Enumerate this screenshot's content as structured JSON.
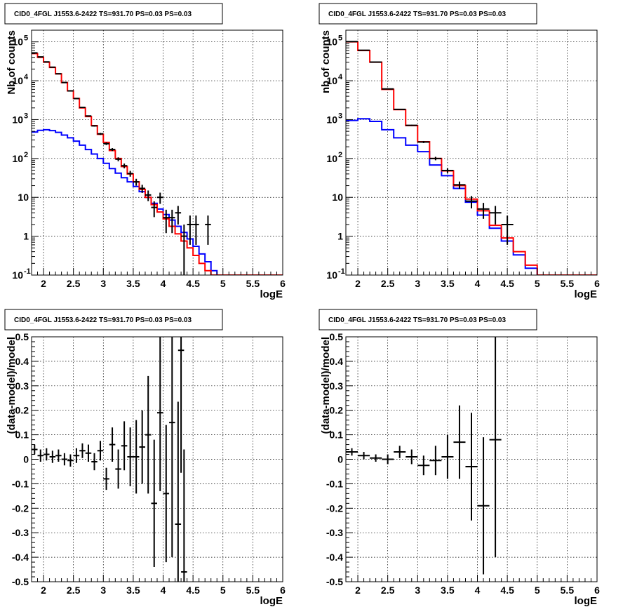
{
  "panel_title": "CID0_4FGL J1553.6-2422 TS=931.70 PS=0.03 PS=0.03",
  "colors": {
    "model_total": "#ff0000",
    "model_source": "#0000ff",
    "data": "#000000"
  },
  "chart_data": [
    {
      "type": "line",
      "panel": "top-left",
      "title": "CID0_4FGL J1553.6-2422 TS=931.70 PS=0.03 PS=0.03",
      "xlabel": "logE",
      "ylabel": "Nb of counts",
      "xlim": [
        1.8,
        6
      ],
      "ylim": [
        0.1,
        200000
      ],
      "ylog": true,
      "grid": true,
      "xticks": [
        "2",
        "2.5",
        "3",
        "3.5",
        "4",
        "4.5",
        "5",
        "5.5",
        "6"
      ],
      "yticks": [
        {
          "v": 0.1,
          "label": "10",
          "exp": "-1"
        },
        {
          "v": 1,
          "label": "1",
          "exp": ""
        },
        {
          "v": 10,
          "label": "10",
          "exp": ""
        },
        {
          "v": 100,
          "label": "10",
          "exp": "2"
        },
        {
          "v": 1000,
          "label": "10",
          "exp": "3"
        },
        {
          "v": 10000,
          "label": "10",
          "exp": "4"
        },
        {
          "v": 100000,
          "label": "10",
          "exp": "5"
        }
      ],
      "bin_edges": [
        1.8,
        1.9,
        2.0,
        2.1,
        2.2,
        2.3,
        2.4,
        2.5,
        2.6,
        2.7,
        2.8,
        2.9,
        3.0,
        3.1,
        3.2,
        3.3,
        3.4,
        3.5,
        3.6,
        3.7,
        3.8,
        3.9,
        4.0,
        4.1,
        4.2,
        4.3,
        4.4,
        4.5,
        4.6,
        4.7,
        4.8,
        4.9,
        5.0,
        5.1,
        5.2,
        5.3,
        5.4,
        5.5,
        5.6,
        5.7,
        5.8,
        5.9,
        6.0
      ],
      "series": [
        {
          "role": "model_total",
          "values": [
            50000,
            40000,
            30000,
            22000,
            15000,
            9000,
            5500,
            3500,
            2000,
            1200,
            700,
            420,
            260,
            160,
            100,
            62,
            40,
            25,
            16,
            10,
            6.5,
            4.2,
            2.8,
            1.8,
            1.15,
            0.75,
            0.5,
            0.32,
            0.2,
            0.13,
            0.1,
            0.1,
            0.1,
            0.1,
            0.1,
            0.1,
            0.1,
            0.1,
            0.1,
            0.1,
            0.1,
            0.1
          ]
        },
        {
          "role": "model_source",
          "values": [
            480,
            530,
            550,
            520,
            470,
            400,
            340,
            280,
            220,
            170,
            130,
            100,
            75,
            55,
            42,
            32,
            25,
            19,
            14,
            10,
            7,
            5,
            3.6,
            2.6,
            1.8,
            1.25,
            0.85,
            0.55,
            0.35,
            0.22,
            0.13,
            0.1,
            0.1,
            0.1,
            0.1,
            0.1,
            0.1,
            0.1,
            0.1,
            0.1,
            0.1,
            0.1
          ]
        }
      ],
      "points": [
        {
          "x": 1.85,
          "y": 52000,
          "err": 300
        },
        {
          "x": 1.95,
          "y": 41000,
          "err": 250
        },
        {
          "x": 2.05,
          "y": 30500,
          "err": 200
        },
        {
          "x": 2.15,
          "y": 22300,
          "err": 180
        },
        {
          "x": 2.25,
          "y": 15100,
          "err": 150
        },
        {
          "x": 2.35,
          "y": 9000,
          "err": 120
        },
        {
          "x": 2.45,
          "y": 5480,
          "err": 90
        },
        {
          "x": 2.55,
          "y": 3480,
          "err": 70
        },
        {
          "x": 2.65,
          "y": 2060,
          "err": 55
        },
        {
          "x": 2.75,
          "y": 1240,
          "err": 40
        },
        {
          "x": 2.85,
          "y": 690,
          "err": 30
        },
        {
          "x": 2.95,
          "y": 430,
          "err": 25
        },
        {
          "x": 3.05,
          "y": 240,
          "err": 18
        },
        {
          "x": 3.15,
          "y": 170,
          "err": 15
        },
        {
          "x": 3.25,
          "y": 96,
          "err": 11
        },
        {
          "x": 3.35,
          "y": 65,
          "err": 9
        },
        {
          "x": 3.45,
          "y": 41,
          "err": 7
        },
        {
          "x": 3.55,
          "y": 25,
          "err": 5
        },
        {
          "x": 3.65,
          "y": 17,
          "err": 4
        },
        {
          "x": 3.75,
          "y": 11.5,
          "err": 3.5
        },
        {
          "x": 3.85,
          "y": 5.5,
          "err": 2.4
        },
        {
          "x": 3.95,
          "y": 10,
          "err": 3.2
        },
        {
          "x": 4.05,
          "y": 3,
          "err": 1.8
        },
        {
          "x": 4.15,
          "y": 3,
          "err": 1.8
        },
        {
          "x": 4.25,
          "y": 4,
          "err": 2
        },
        {
          "x": 4.35,
          "y": 1,
          "err": 1
        },
        {
          "x": 4.45,
          "y": 2,
          "err": 1.4
        },
        {
          "x": 4.55,
          "y": 2,
          "err": 1.4
        },
        {
          "x": 4.75,
          "y": 2,
          "err": 1.4
        }
      ]
    },
    {
      "type": "line",
      "panel": "top-right",
      "title": "CID0_4FGL J1553.6-2422 TS=931.70 PS=0.03 PS=0.03",
      "xlabel": "logE",
      "ylabel": "nb of counts",
      "xlim": [
        1.8,
        6
      ],
      "ylim": [
        0.1,
        200000
      ],
      "ylog": true,
      "grid": true,
      "xticks": [
        "2",
        "2.5",
        "3",
        "3.5",
        "4",
        "4.5",
        "5",
        "5.5",
        "6"
      ],
      "yticks": [
        {
          "v": 0.1,
          "label": "10",
          "exp": "-1"
        },
        {
          "v": 1,
          "label": "1",
          "exp": ""
        },
        {
          "v": 10,
          "label": "10",
          "exp": ""
        },
        {
          "v": 100,
          "label": "10",
          "exp": "2"
        },
        {
          "v": 1000,
          "label": "10",
          "exp": "3"
        },
        {
          "v": 10000,
          "label": "10",
          "exp": "4"
        },
        {
          "v": 100000,
          "label": "10",
          "exp": "5"
        }
      ],
      "bin_edges": [
        1.8,
        2.0,
        2.2,
        2.4,
        2.6,
        2.8,
        3.0,
        3.2,
        3.4,
        3.6,
        3.8,
        4.0,
        4.2,
        4.4,
        4.6,
        4.8,
        5.0,
        5.2,
        5.4,
        5.6,
        5.8,
        6.0
      ],
      "series": [
        {
          "role": "model_total",
          "values": [
            100000,
            60000,
            30000,
            6000,
            1800,
            700,
            270,
            100,
            48,
            20,
            9,
            4.5,
            1.9,
            0.9,
            0.4,
            0.18,
            0.1,
            0.1,
            0.1,
            0.1,
            0.1
          ]
        },
        {
          "role": "model_source",
          "values": [
            950,
            1050,
            900,
            550,
            340,
            220,
            150,
            68,
            36,
            17,
            7.5,
            3.5,
            1.6,
            0.75,
            0.33,
            0.15,
            0.1,
            0.1,
            0.1,
            0.1,
            0.1
          ]
        }
      ],
      "points": [
        {
          "x": 1.9,
          "y": 102000,
          "err": 350
        },
        {
          "x": 2.1,
          "y": 61000,
          "err": 260
        },
        {
          "x": 2.3,
          "y": 30200,
          "err": 180
        },
        {
          "x": 2.5,
          "y": 6150,
          "err": 80
        },
        {
          "x": 2.7,
          "y": 1830,
          "err": 45
        },
        {
          "x": 2.9,
          "y": 710,
          "err": 27
        },
        {
          "x": 3.1,
          "y": 265,
          "err": 16
        },
        {
          "x": 3.3,
          "y": 100,
          "err": 10
        },
        {
          "x": 3.5,
          "y": 49,
          "err": 7
        },
        {
          "x": 3.7,
          "y": 21,
          "err": 4.5
        },
        {
          "x": 3.9,
          "y": 8,
          "err": 2.8
        },
        {
          "x": 4.1,
          "y": 5,
          "err": 2.2
        },
        {
          "x": 4.3,
          "y": 4,
          "err": 2
        },
        {
          "x": 4.5,
          "y": 2,
          "err": 1.4
        }
      ]
    },
    {
      "type": "scatter",
      "panel": "bottom-left",
      "title": "CID0_4FGL J1553.6-2422 TS=931.70 PS=0.03 PS=0.03",
      "xlabel": "logE",
      "ylabel": "(data-model)/model",
      "xlim": [
        1.8,
        6
      ],
      "ylim": [
        -0.5,
        0.5
      ],
      "ylog": false,
      "grid": true,
      "xticks": [
        "2",
        "2.5",
        "3",
        "3.5",
        "4",
        "4.5",
        "5",
        "5.5",
        "6"
      ],
      "yticks": [
        {
          "v": -0.5,
          "label": "-0.5"
        },
        {
          "v": -0.4,
          "label": "-0.4"
        },
        {
          "v": -0.3,
          "label": "-0.3"
        },
        {
          "v": -0.2,
          "label": "-0.2"
        },
        {
          "v": -0.1,
          "label": "-0.1"
        },
        {
          "v": 0,
          "label": "0"
        },
        {
          "v": 0.1,
          "label": "0.1"
        },
        {
          "v": 0.2,
          "label": "0.2"
        },
        {
          "v": 0.3,
          "label": "0.3"
        },
        {
          "v": 0.4,
          "label": "0.4"
        },
        {
          "v": 0.5,
          "label": "0.5"
        }
      ],
      "points": [
        {
          "x": 1.85,
          "y": 0.04,
          "err": 0.02
        },
        {
          "x": 1.95,
          "y": 0.015,
          "err": 0.025
        },
        {
          "x": 2.05,
          "y": 0.02,
          "err": 0.025
        },
        {
          "x": 2.15,
          "y": 0.01,
          "err": 0.025
        },
        {
          "x": 2.25,
          "y": 0.015,
          "err": 0.025
        },
        {
          "x": 2.35,
          "y": 0.0,
          "err": 0.025
        },
        {
          "x": 2.45,
          "y": -0.005,
          "err": 0.025
        },
        {
          "x": 2.55,
          "y": 0.015,
          "err": 0.03
        },
        {
          "x": 2.65,
          "y": 0.035,
          "err": 0.03
        },
        {
          "x": 2.75,
          "y": 0.025,
          "err": 0.035
        },
        {
          "x": 2.85,
          "y": -0.01,
          "err": 0.035
        },
        {
          "x": 2.95,
          "y": 0.035,
          "err": 0.04
        },
        {
          "x": 3.05,
          "y": -0.08,
          "err": 0.045
        },
        {
          "x": 3.15,
          "y": 0.06,
          "err": 0.07
        },
        {
          "x": 3.25,
          "y": -0.04,
          "err": 0.08
        },
        {
          "x": 3.35,
          "y": 0.055,
          "err": 0.1
        },
        {
          "x": 3.45,
          "y": 0.01,
          "err": 0.12
        },
        {
          "x": 3.55,
          "y": 0.01,
          "err": 0.15
        },
        {
          "x": 3.65,
          "y": 0.05,
          "err": 0.15
        },
        {
          "x": 3.75,
          "y": 0.1,
          "err": 0.24
        },
        {
          "x": 3.85,
          "y": -0.18,
          "err": 0.26
        },
        {
          "x": 3.95,
          "y": 0.19,
          "err": 0.32
        },
        {
          "x": 4.05,
          "y": -0.14,
          "err": 0.28
        },
        {
          "x": 4.15,
          "y": 0.15,
          "err": 0.55
        },
        {
          "x": 4.25,
          "y": -0.265,
          "err": 0.5
        },
        {
          "x": 4.3,
          "y": 0.445,
          "err": 0.5
        },
        {
          "x": 4.35,
          "y": -0.46,
          "err": 0.5
        }
      ]
    },
    {
      "type": "scatter",
      "panel": "bottom-right",
      "title": "CID0_4FGL J1553.6-2422 TS=931.70 PS=0.03 PS=0.03",
      "xlabel": "logE",
      "ylabel": "(data-model)/model",
      "xlim": [
        1.8,
        6
      ],
      "ylim": [
        -0.5,
        0.5
      ],
      "ylog": false,
      "grid": true,
      "xticks": [
        "2",
        "2.5",
        "3",
        "3.5",
        "4",
        "4.5",
        "5",
        "5.5",
        "6"
      ],
      "yticks": [
        {
          "v": -0.5,
          "label": "-0.5"
        },
        {
          "v": -0.4,
          "label": "-0.4"
        },
        {
          "v": -0.3,
          "label": "-0.3"
        },
        {
          "v": -0.2,
          "label": "-0.2"
        },
        {
          "v": -0.1,
          "label": "-0.1"
        },
        {
          "v": 0,
          "label": "0"
        },
        {
          "v": 0.1,
          "label": "0.1"
        },
        {
          "v": 0.2,
          "label": "0.2"
        },
        {
          "v": 0.3,
          "label": "0.3"
        },
        {
          "v": 0.4,
          "label": "0.4"
        },
        {
          "v": 0.5,
          "label": "0.5"
        }
      ],
      "points": [
        {
          "x": 1.9,
          "y": 0.03,
          "err": 0.015
        },
        {
          "x": 2.1,
          "y": 0.015,
          "err": 0.015
        },
        {
          "x": 2.3,
          "y": 0.005,
          "err": 0.015
        },
        {
          "x": 2.5,
          "y": 0.0,
          "err": 0.02
        },
        {
          "x": 2.7,
          "y": 0.03,
          "err": 0.025
        },
        {
          "x": 2.9,
          "y": 0.01,
          "err": 0.03
        },
        {
          "x": 3.1,
          "y": -0.025,
          "err": 0.04
        },
        {
          "x": 3.3,
          "y": -0.005,
          "err": 0.06
        },
        {
          "x": 3.5,
          "y": 0.01,
          "err": 0.09
        },
        {
          "x": 3.7,
          "y": 0.07,
          "err": 0.15
        },
        {
          "x": 3.9,
          "y": -0.03,
          "err": 0.22
        },
        {
          "x": 4.1,
          "y": -0.19,
          "err": 0.28
        },
        {
          "x": 4.3,
          "y": 0.08,
          "err": 0.48
        }
      ]
    }
  ]
}
